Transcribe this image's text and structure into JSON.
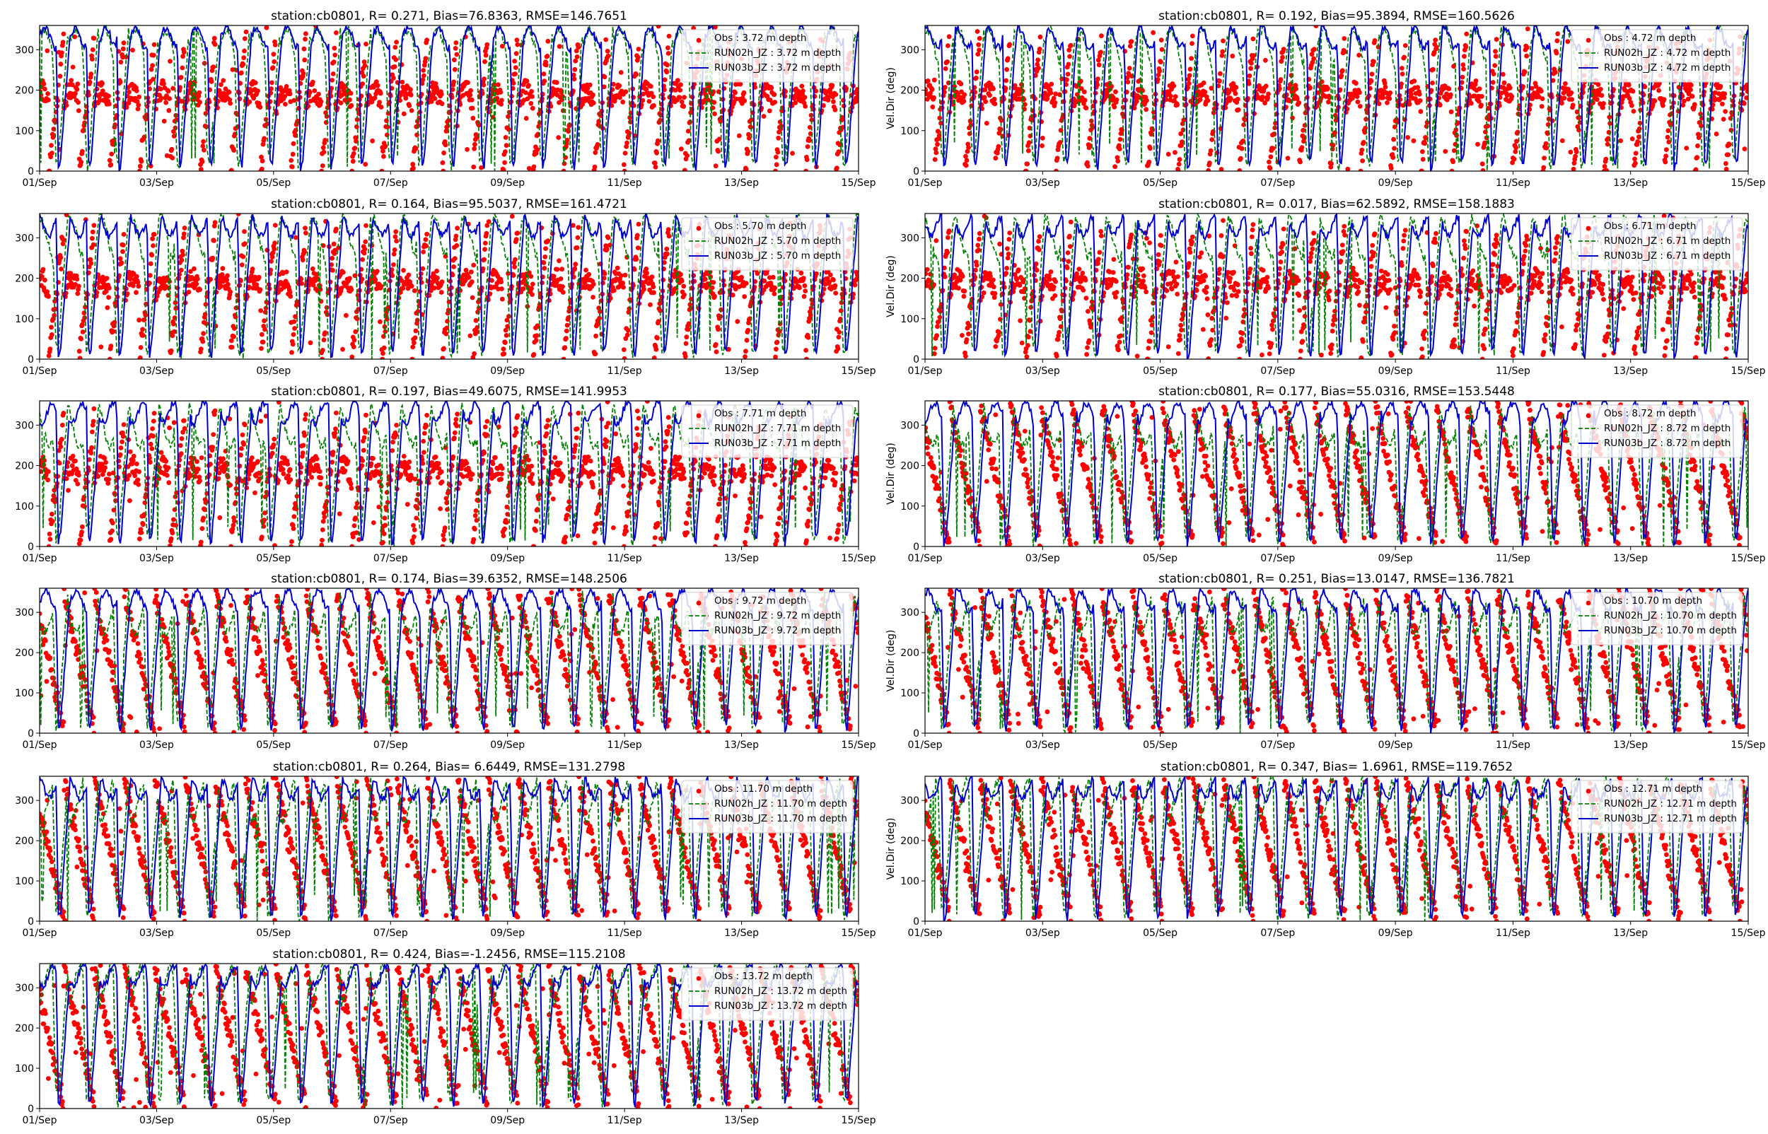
{
  "figure": {
    "station": "cb0801",
    "ylabel": "Vel.Dir (deg)",
    "ytick_labels": [
      "0",
      "100",
      "200",
      "300"
    ],
    "xtick_labels": [
      "01/Sep",
      "03/Sep",
      "05/Sep",
      "07/Sep",
      "09/Sep",
      "11/Sep",
      "13/Sep",
      "15/Sep"
    ],
    "colors": {
      "obs": "#ff0000",
      "run02h": "#008000",
      "run03b": "#0000cd"
    }
  },
  "chart_data": [
    {
      "type": "line",
      "title": "station:cb0801, R= 0.271, Bias=76.8363, RMSE=146.7651",
      "depth": "3.72",
      "ylabel": "",
      "ylim": [
        0,
        360
      ],
      "xlim": [
        0,
        14
      ],
      "series": [
        {
          "name": "Obs : 3.72 m depth"
        },
        {
          "name": "RUN02h_JZ : 3.72 m depth"
        },
        {
          "name": "RUN03b_JZ : 3.72 m depth"
        }
      ]
    },
    {
      "type": "line",
      "title": "station:cb0801, R= 0.192, Bias=95.3894, RMSE=160.5626",
      "depth": "4.72",
      "ylabel": "Vel.Dir (deg)",
      "ylim": [
        0,
        360
      ],
      "xlim": [
        0,
        14
      ],
      "series": [
        {
          "name": "Obs : 4.72 m depth"
        },
        {
          "name": "RUN02h_JZ : 4.72 m depth"
        },
        {
          "name": "RUN03b_JZ : 4.72 m depth"
        }
      ]
    },
    {
      "type": "line",
      "title": "station:cb0801, R= 0.164, Bias=95.5037, RMSE=161.4721",
      "depth": "5.70",
      "ylabel": "",
      "ylim": [
        0,
        360
      ],
      "xlim": [
        0,
        14
      ],
      "series": [
        {
          "name": "Obs : 5.70 m depth"
        },
        {
          "name": "RUN02h_JZ : 5.70 m depth"
        },
        {
          "name": "RUN03b_JZ : 5.70 m depth"
        }
      ]
    },
    {
      "type": "line",
      "title": "station:cb0801, R= 0.017, Bias=62.5892, RMSE=158.1883",
      "depth": "6.71",
      "ylabel": "Vel.Dir (deg)",
      "ylim": [
        0,
        360
      ],
      "xlim": [
        0,
        14
      ],
      "series": [
        {
          "name": "Obs : 6.71 m depth"
        },
        {
          "name": "RUN02h_JZ : 6.71 m depth"
        },
        {
          "name": "RUN03b_JZ : 6.71 m depth"
        }
      ]
    },
    {
      "type": "line",
      "title": "station:cb0801, R= 0.197, Bias=49.6075, RMSE=141.9953",
      "depth": "7.71",
      "ylabel": "",
      "ylim": [
        0,
        360
      ],
      "xlim": [
        0,
        14
      ],
      "series": [
        {
          "name": "Obs : 7.71 m depth"
        },
        {
          "name": "RUN02h_JZ : 7.71 m depth"
        },
        {
          "name": "RUN03b_JZ : 7.71 m depth"
        }
      ]
    },
    {
      "type": "line",
      "title": "station:cb0801, R= 0.177, Bias=55.0316, RMSE=153.5448",
      "depth": "8.72",
      "ylabel": "Vel.Dir (deg)",
      "ylim": [
        0,
        360
      ],
      "xlim": [
        0,
        14
      ],
      "series": [
        {
          "name": "Obs : 8.72 m depth"
        },
        {
          "name": "RUN02h_JZ : 8.72 m depth"
        },
        {
          "name": "RUN03b_JZ : 8.72 m depth"
        }
      ]
    },
    {
      "type": "line",
      "title": "station:cb0801, R= 0.174, Bias=39.6352, RMSE=148.2506",
      "depth": "9.72",
      "ylabel": "",
      "ylim": [
        0,
        360
      ],
      "xlim": [
        0,
        14
      ],
      "series": [
        {
          "name": "Obs : 9.72 m depth"
        },
        {
          "name": "RUN02h_JZ : 9.72 m depth"
        },
        {
          "name": "RUN03b_JZ : 9.72 m depth"
        }
      ]
    },
    {
      "type": "line",
      "title": "station:cb0801, R= 0.251, Bias=13.0147, RMSE=136.7821",
      "depth": "10.70",
      "ylabel": "Vel.Dir (deg)",
      "ylim": [
        0,
        360
      ],
      "xlim": [
        0,
        14
      ],
      "series": [
        {
          "name": "Obs : 10.70 m depth"
        },
        {
          "name": "RUN02h_JZ : 10.70 m depth"
        },
        {
          "name": "RUN03b_JZ : 10.70 m depth"
        }
      ]
    },
    {
      "type": "line",
      "title": "station:cb0801, R= 0.264, Bias= 6.6449, RMSE=131.2798",
      "depth": "11.70",
      "ylabel": "",
      "ylim": [
        0,
        360
      ],
      "xlim": [
        0,
        14
      ],
      "series": [
        {
          "name": "Obs : 11.70 m depth"
        },
        {
          "name": "RUN02h_JZ : 11.70 m depth"
        },
        {
          "name": "RUN03b_JZ : 11.70 m depth"
        }
      ]
    },
    {
      "type": "line",
      "title": "station:cb0801, R= 0.347, Bias= 1.6961, RMSE=119.7652",
      "depth": "12.71",
      "ylabel": "Vel.Dir (deg)",
      "ylim": [
        0,
        360
      ],
      "xlim": [
        0,
        14
      ],
      "series": [
        {
          "name": "Obs : 12.71 m depth"
        },
        {
          "name": "RUN02h_JZ : 12.71 m depth"
        },
        {
          "name": "RUN03b_JZ : 12.71 m depth"
        }
      ]
    },
    {
      "type": "line",
      "title": "station:cb0801, R= 0.424, Bias=-1.2456, RMSE=115.2108",
      "depth": "13.72",
      "ylabel": "",
      "ylim": [
        0,
        360
      ],
      "xlim": [
        0,
        14
      ],
      "series": [
        {
          "name": "Obs : 13.72 m depth"
        },
        {
          "name": "RUN02h_JZ : 13.72 m depth"
        },
        {
          "name": "RUN03b_JZ : 13.72 m depth"
        }
      ]
    }
  ]
}
